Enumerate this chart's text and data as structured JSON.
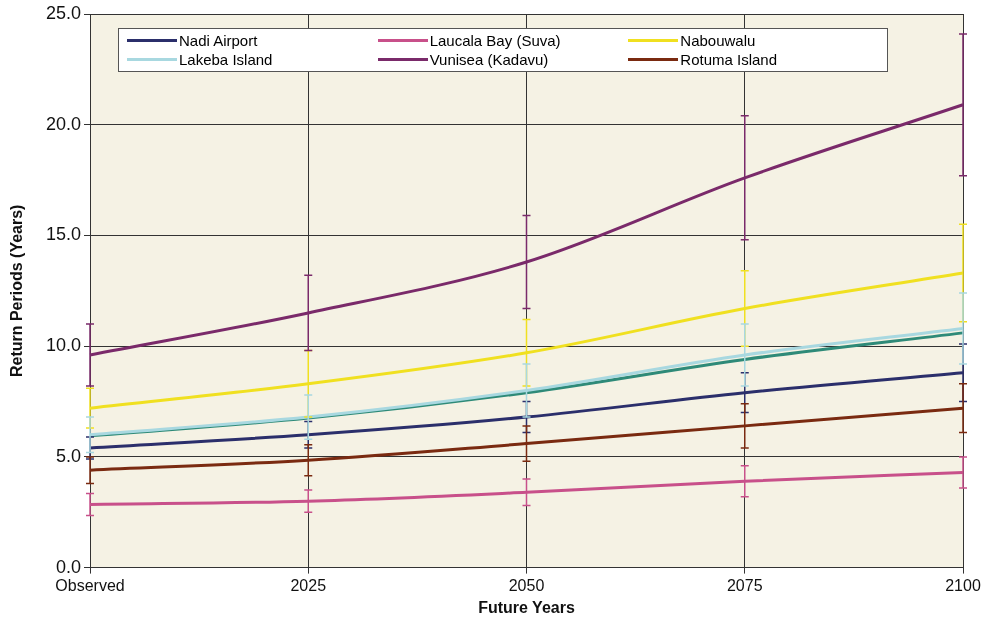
{
  "chart_data": {
    "type": "line",
    "xlabel": "Future Years",
    "ylabel": "Return Periods (Years)",
    "categories": [
      "Observed",
      "2025",
      "2050",
      "2075",
      "2100"
    ],
    "ylim": [
      0,
      25
    ],
    "yticks": [
      {
        "value": 0,
        "label": "0.0"
      },
      {
        "value": 5,
        "label": "5.0"
      },
      {
        "value": 10,
        "label": "10.0"
      },
      {
        "value": 15,
        "label": "15.0"
      },
      {
        "value": 20,
        "label": "20.0"
      },
      {
        "value": 25,
        "label": "25.0"
      }
    ],
    "grid": true,
    "legend": "top",
    "marker": "none",
    "line_style": "solid",
    "series": [
      {
        "name": "Nadi Airport",
        "color": "#2b2f6b",
        "values": [
          5.4,
          6.0,
          6.8,
          7.9,
          8.8
        ],
        "errors": [
          0.5,
          0.6,
          0.7,
          0.9,
          1.3
        ]
      },
      {
        "name": "Laucala Bay (Suva)",
        "color": "#c8508a",
        "values": [
          2.85,
          3.0,
          3.4,
          3.9,
          4.3
        ],
        "errors": [
          0.5,
          0.5,
          0.6,
          0.7,
          0.7
        ]
      },
      {
        "name": "Nabouwalu",
        "color": "#f0e020",
        "values": [
          7.2,
          8.3,
          9.7,
          11.7,
          13.3
        ],
        "errors": [
          0.9,
          1.5,
          1.5,
          1.7,
          2.2
        ]
      },
      {
        "name": "Lakeba Island",
        "color": "#a8d8e0",
        "values": [
          6.0,
          6.8,
          8.0,
          9.6,
          10.8
        ],
        "errors": [
          0.8,
          1.0,
          1.2,
          1.4,
          1.6
        ]
      },
      {
        "name": "Vunisea (Kadavu)",
        "color": "#7a2a6a",
        "values": [
          9.6,
          11.5,
          13.8,
          17.6,
          20.9
        ],
        "errors": [
          1.4,
          1.7,
          2.1,
          2.8,
          3.2
        ]
      },
      {
        "name": "Rotuma Island",
        "color": "#7a2a10",
        "values": [
          4.4,
          4.85,
          5.6,
          6.4,
          7.2
        ],
        "errors": [
          0.6,
          0.7,
          0.8,
          1.0,
          1.1
        ]
      },
      {
        "color": "#2e8a78",
        "values": [
          5.95,
          6.75,
          7.9,
          9.4,
          10.6
        ]
      }
    ]
  }
}
